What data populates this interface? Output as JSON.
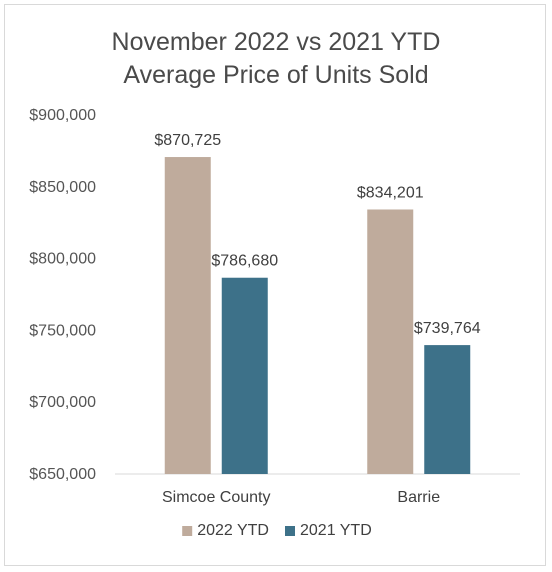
{
  "chart_data": {
    "type": "bar",
    "title": "November 2022 vs 2021 YTD",
    "subtitle": "Average Price of Units Sold",
    "categories": [
      "Simcoe County",
      "Barrie"
    ],
    "series": [
      {
        "name": "2022 YTD",
        "values": [
          870725,
          834201
        ],
        "labels": [
          "$870,725",
          "$834,201"
        ],
        "color": "#bfab9c"
      },
      {
        "name": "2021 YTD",
        "values": [
          786680,
          739764
        ],
        "labels": [
          "$786,680",
          "$739,764"
        ],
        "color": "#3d7189"
      }
    ],
    "ylim": [
      650000,
      900000
    ],
    "yticks": [
      650000,
      700000,
      750000,
      800000,
      850000,
      900000
    ],
    "ytick_labels": [
      "$650,000",
      "$700,000",
      "$750,000",
      "$800,000",
      "$850,000",
      "$900,000"
    ],
    "grid": false,
    "legend_position": "bottom",
    "axis_color": "#d9d9d9"
  }
}
